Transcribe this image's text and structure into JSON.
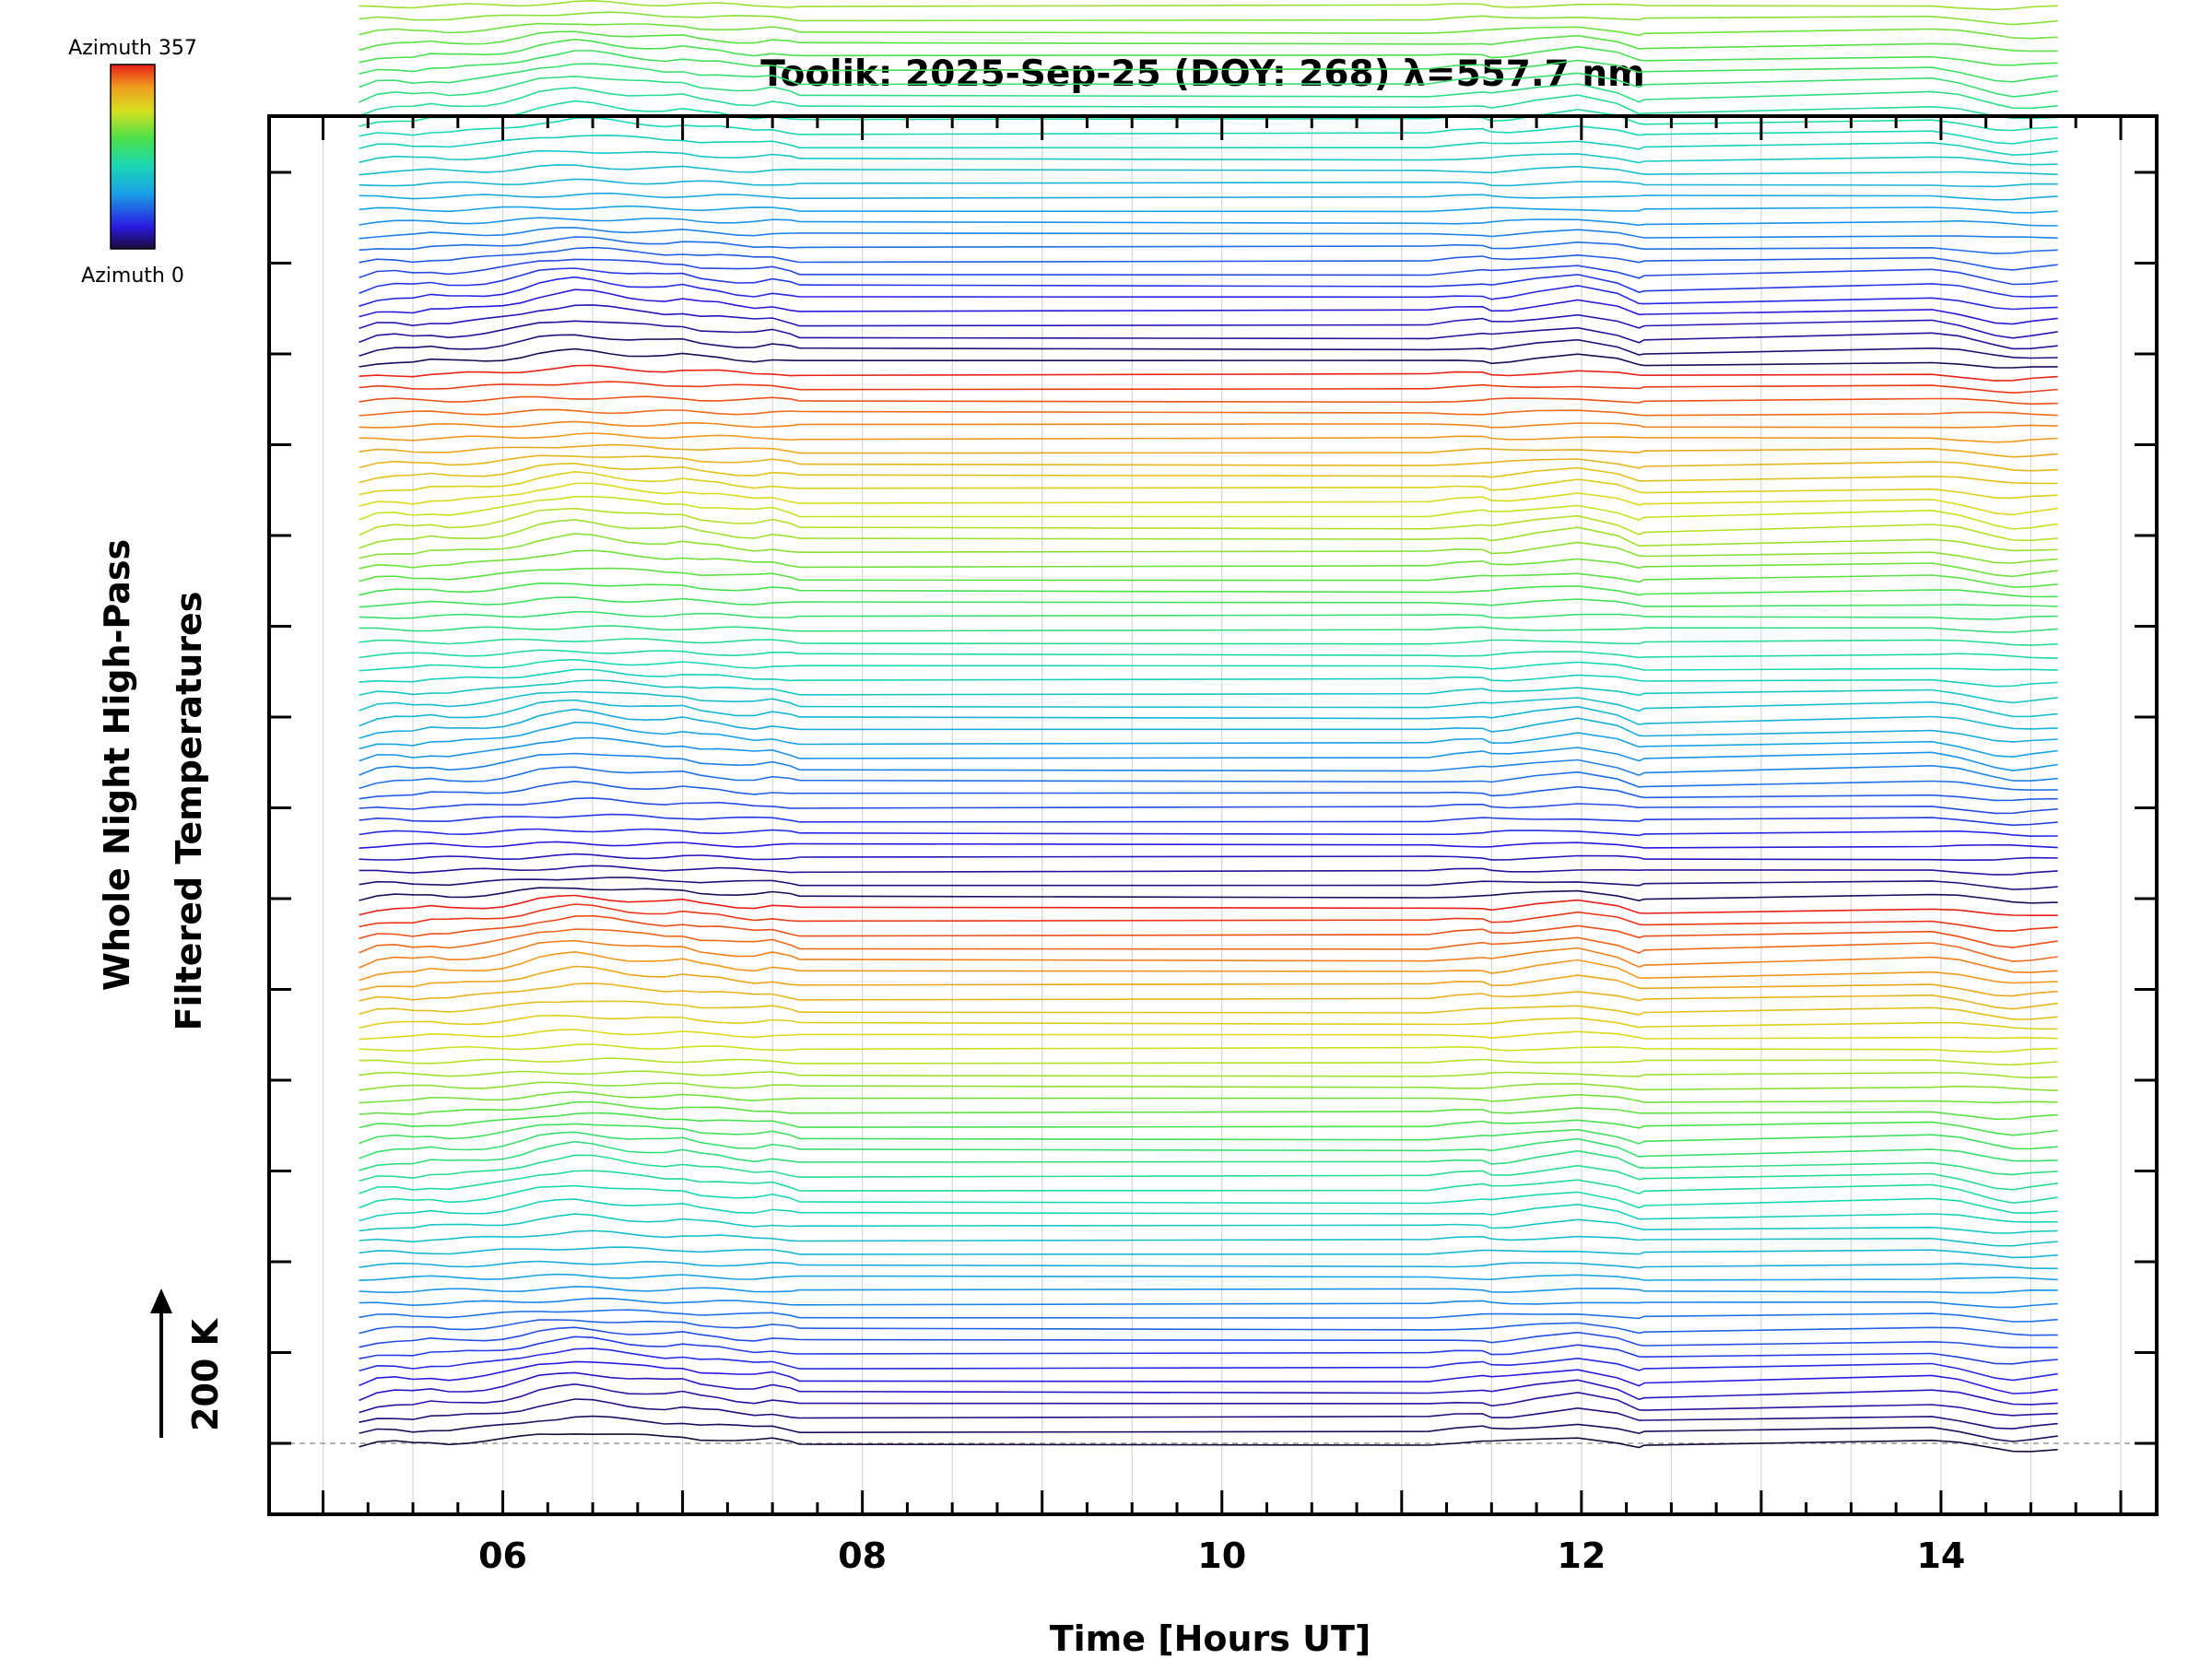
{
  "chart_data": {
    "type": "line",
    "title": "Toolik: 2025-Sep-25 (DOY: 268) λ=557.7 nm",
    "xlabel": "Time [Hours UT]",
    "ylabel_line1": "Whole Night High-Pass",
    "ylabel_line2": "Filtered Temperatures",
    "scale_label": "200 K",
    "xlim": [
      4.7,
      15.2
    ],
    "x_tick_labels": [
      "06",
      "08",
      "10",
      "12",
      "14"
    ],
    "x_tick_values": [
      6,
      8,
      10,
      12,
      14
    ],
    "colorbar": {
      "top_label": "Azimuth 357",
      "bottom_label": "Azimuth 0"
    },
    "series_count": 128,
    "series_offset": 10,
    "azimuth_range": [
      0,
      357
    ],
    "time_samples": [
      5.2,
      5.3,
      5.4,
      5.5,
      5.6,
      5.7,
      5.8,
      5.9,
      6.0,
      6.1,
      6.2,
      6.3,
      6.4,
      6.5,
      6.6,
      6.7,
      6.8,
      6.9,
      7.0,
      7.1,
      7.2,
      7.3,
      7.4,
      7.5,
      7.6,
      7.65,
      11.15,
      11.3,
      11.45,
      11.5,
      11.6,
      11.75,
      11.98,
      12.2,
      12.32,
      12.35,
      13.95,
      14.1,
      14.3,
      14.4,
      14.5,
      14.65
    ],
    "template_profile": [
      -5,
      0,
      1,
      0,
      2,
      1,
      2,
      3,
      5,
      8,
      12,
      14,
      16,
      15,
      13,
      11,
      10,
      9,
      10,
      7,
      6,
      4,
      3,
      5,
      2,
      0,
      0,
      2,
      3,
      1,
      2,
      5,
      9,
      3,
      -4,
      -3,
      2,
      -1,
      -8,
      -10,
      -9,
      -7
    ]
  }
}
